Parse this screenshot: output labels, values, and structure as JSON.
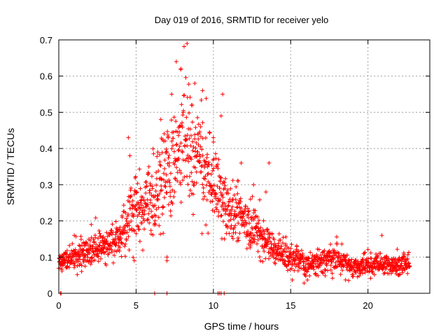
{
  "chart_data": {
    "type": "scatter",
    "title": "Day 019 of 2016, SRMTID for receiver yelo",
    "xlabel": "GPS time / hours",
    "ylabel": "SRMTID / TECUs",
    "xlim": [
      0,
      24
    ],
    "ylim": [
      0,
      0.7
    ],
    "xticks": [
      "0",
      "5",
      "10",
      "15",
      "20"
    ],
    "yticks": [
      "0",
      "0.1",
      "0.2",
      "0.3",
      "0.4",
      "0.5",
      "0.6",
      "0.7"
    ],
    "grid": true,
    "marker": "+",
    "color": "#ff0000",
    "series": [
      {
        "name": "SRMTID",
        "envelope": [
          {
            "t": 0.0,
            "mean": 0.08,
            "spread": 0.025
          },
          {
            "t": 1.0,
            "mean": 0.1,
            "spread": 0.03
          },
          {
            "t": 2.0,
            "mean": 0.12,
            "spread": 0.035
          },
          {
            "t": 3.0,
            "mean": 0.13,
            "spread": 0.04
          },
          {
            "t": 4.0,
            "mean": 0.15,
            "spread": 0.04
          },
          {
            "t": 4.5,
            "mean": 0.2,
            "spread": 0.06
          },
          {
            "t": 5.0,
            "mean": 0.24,
            "spread": 0.08
          },
          {
            "t": 6.0,
            "mean": 0.27,
            "spread": 0.09
          },
          {
            "t": 7.0,
            "mean": 0.35,
            "spread": 0.11
          },
          {
            "t": 8.0,
            "mean": 0.42,
            "spread": 0.14
          },
          {
            "t": 9.0,
            "mean": 0.38,
            "spread": 0.12
          },
          {
            "t": 10.0,
            "mean": 0.32,
            "spread": 0.1
          },
          {
            "t": 10.5,
            "mean": 0.27,
            "spread": 0.09
          },
          {
            "t": 11.0,
            "mean": 0.22,
            "spread": 0.07
          },
          {
            "t": 12.0,
            "mean": 0.2,
            "spread": 0.06
          },
          {
            "t": 13.0,
            "mean": 0.17,
            "spread": 0.05
          },
          {
            "t": 14.0,
            "mean": 0.12,
            "spread": 0.04
          },
          {
            "t": 15.0,
            "mean": 0.1,
            "spread": 0.03
          },
          {
            "t": 16.0,
            "mean": 0.08,
            "spread": 0.03
          },
          {
            "t": 17.0,
            "mean": 0.09,
            "spread": 0.03
          },
          {
            "t": 18.0,
            "mean": 0.1,
            "spread": 0.03
          },
          {
            "t": 19.0,
            "mean": 0.07,
            "spread": 0.025
          },
          {
            "t": 20.0,
            "mean": 0.08,
            "spread": 0.025
          },
          {
            "t": 21.0,
            "mean": 0.08,
            "spread": 0.025
          },
          {
            "t": 22.0,
            "mean": 0.08,
            "spread": 0.025
          },
          {
            "t": 22.7,
            "mean": 0.08,
            "spread": 0.025
          }
        ],
        "peaks": [
          {
            "x": 8.3,
            "y": 0.69
          },
          {
            "x": 7.3,
            "y": 0.55
          },
          {
            "x": 7.6,
            "y": 0.64
          },
          {
            "x": 7.9,
            "y": 0.62
          },
          {
            "x": 8.8,
            "y": 0.58
          },
          {
            "x": 9.3,
            "y": 0.56
          },
          {
            "x": 10.6,
            "y": 0.55
          },
          {
            "x": 10.5,
            "y": 0.49
          },
          {
            "x": 4.5,
            "y": 0.43
          },
          {
            "x": 4.6,
            "y": 0.38
          },
          {
            "x": 6.6,
            "y": 0.48
          },
          {
            "x": 10.0,
            "y": 0.43
          },
          {
            "x": 11.8,
            "y": 0.36
          },
          {
            "x": 13.6,
            "y": 0.36
          },
          {
            "x": 13.4,
            "y": 0.28
          },
          {
            "x": 12.6,
            "y": 0.3
          },
          {
            "x": 12.4,
            "y": 0.26
          },
          {
            "x": 10.8,
            "y": 0.24
          },
          {
            "x": 11.6,
            "y": 0.31
          },
          {
            "x": 7.0,
            "y": 0.1
          },
          {
            "x": 7.0,
            "y": 0.09
          },
          {
            "x": 2.1,
            "y": 0.19
          },
          {
            "x": 20.9,
            "y": 0.16
          },
          {
            "x": 1.0,
            "y": 0.16
          }
        ],
        "zeros": [
          0.1,
          0.15,
          6.2,
          7.0,
          10.3,
          10.4,
          10.5,
          10.7
        ]
      }
    ]
  }
}
